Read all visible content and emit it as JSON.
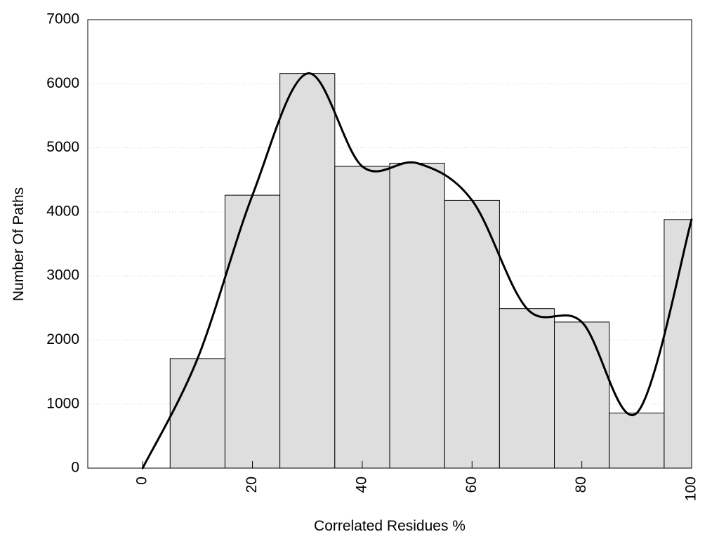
{
  "chart_data": {
    "type": "bar",
    "title": "",
    "xlabel": "Correlated Residues %",
    "ylabel": "Number Of Paths",
    "xlim": [
      -10,
      100
    ],
    "ylim": [
      0,
      7000
    ],
    "x_ticks": [
      0,
      20,
      40,
      60,
      80,
      100
    ],
    "y_ticks": [
      0,
      1000,
      2000,
      3000,
      4000,
      5000,
      6000,
      7000
    ],
    "grid": "horizontal dotted",
    "bin_width": 10,
    "bars": [
      {
        "x": 0,
        "value": 0
      },
      {
        "x": 10,
        "value": 1710
      },
      {
        "x": 20,
        "value": 4260
      },
      {
        "x": 30,
        "value": 6160
      },
      {
        "x": 40,
        "value": 4710
      },
      {
        "x": 50,
        "value": 4760
      },
      {
        "x": 60,
        "value": 4180
      },
      {
        "x": 70,
        "value": 2490
      },
      {
        "x": 80,
        "value": 2280
      },
      {
        "x": 90,
        "value": 860
      },
      {
        "x": 100,
        "value": 3880
      }
    ],
    "bar_color": "#dedede",
    "curve": {
      "type": "smoothed line",
      "color": "#000000",
      "points": [
        {
          "x": 0,
          "y": 0
        },
        {
          "x": 10,
          "y": 1710
        },
        {
          "x": 20,
          "y": 4260
        },
        {
          "x": 30,
          "y": 6160
        },
        {
          "x": 40,
          "y": 4710
        },
        {
          "x": 50,
          "y": 4760
        },
        {
          "x": 60,
          "y": 4180
        },
        {
          "x": 70,
          "y": 2490
        },
        {
          "x": 80,
          "y": 2280
        },
        {
          "x": 90,
          "y": 860
        },
        {
          "x": 100,
          "y": 3880
        }
      ]
    }
  }
}
